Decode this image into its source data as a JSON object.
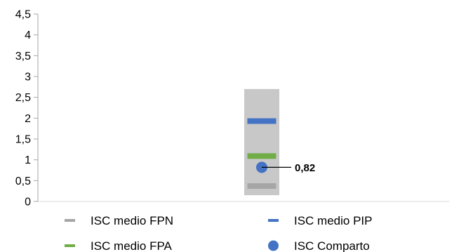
{
  "chart_data": {
    "type": "scatter",
    "ylim": [
      0,
      4.5
    ],
    "y_ticks": [
      "0",
      "0,5",
      "1",
      "1,5",
      "2",
      "2,5",
      "3",
      "3,5",
      "4",
      "4,5"
    ],
    "grid": false,
    "range_band": {
      "low": 0.15,
      "high": 2.7,
      "color": "#c8c8c8"
    },
    "series": [
      {
        "name": "ISC medio FPN",
        "value": 0.37,
        "marker": "dash",
        "color": "#a6a6a6"
      },
      {
        "name": "ISC medio PIP",
        "value": 1.93,
        "marker": "dash",
        "color": "#4472c4"
      },
      {
        "name": "ISC medio FPA",
        "value": 1.09,
        "marker": "dash",
        "color": "#70ad47"
      },
      {
        "name": "ISC Comparto",
        "value": 0.82,
        "marker": "circle",
        "color": "#4472c4",
        "label": "0,82"
      }
    ],
    "legend_position": "bottom",
    "legend": [
      "ISC medio FPN",
      "ISC medio PIP",
      "ISC medio FPA",
      "ISC Comparto"
    ]
  }
}
